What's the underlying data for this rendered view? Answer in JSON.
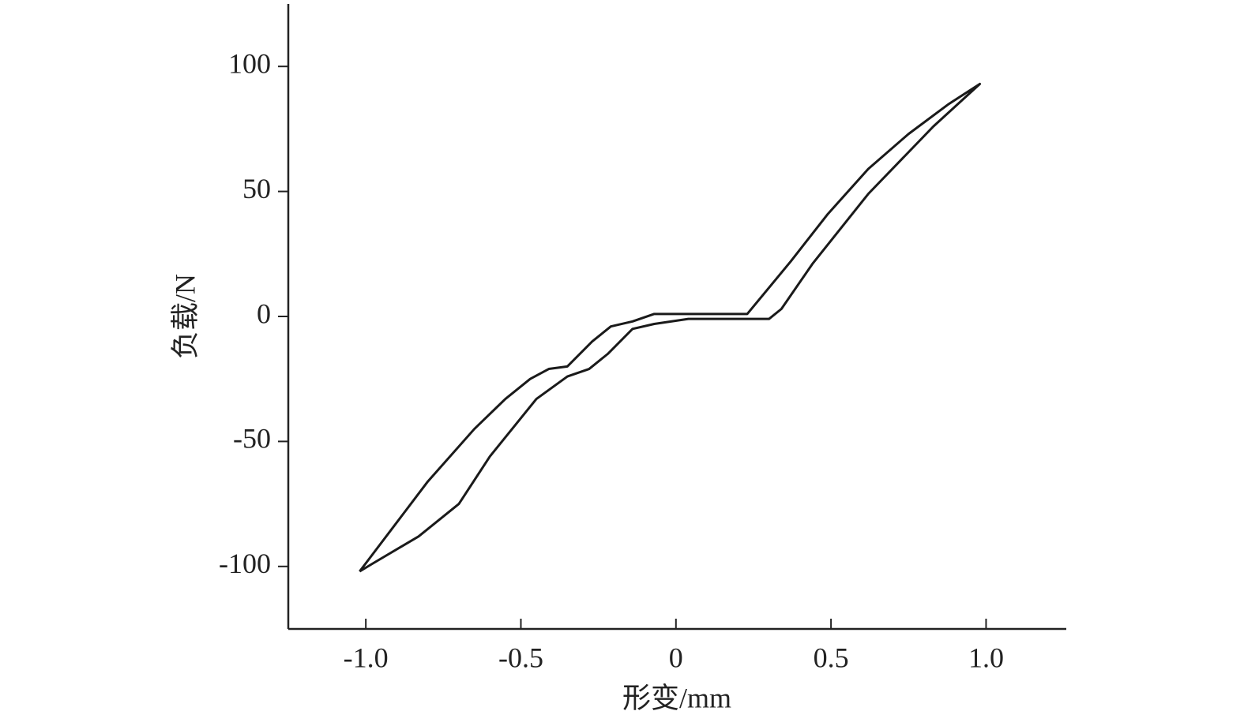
{
  "chart_data": {
    "type": "line",
    "x_label": "形变/mm",
    "y_label": "负载/N",
    "x": [
      -1.02,
      -0.8,
      -0.65,
      -0.55,
      -0.47,
      -0.41,
      -0.35,
      -0.27,
      -0.21,
      -0.14,
      -0.07,
      0,
      0.23,
      0.37,
      0.49,
      0.62,
      0.75,
      0.88,
      0.98,
      0.83,
      0.62,
      0.44,
      0.34,
      0.3,
      0.04,
      -0.07,
      -0.14,
      -0.22,
      -0.28,
      -0.35,
      -0.45,
      -0.6,
      -0.7,
      -0.83,
      -0.98,
      -1.02
    ],
    "values": [
      -102,
      -66,
      -45,
      -33,
      -25,
      -21,
      -20,
      -10,
      -4,
      -2,
      1,
      1,
      1,
      22,
      41,
      59,
      73,
      85,
      93,
      76,
      49,
      21,
      3,
      -1,
      -1,
      -3,
      -5,
      -15,
      -21,
      -24,
      -33,
      -56,
      -75,
      -88,
      -99,
      -102
    ],
    "color": "#1a1a1a",
    "xlim": [
      -1.25,
      1.25
    ],
    "xticks": [
      {
        "value": -1,
        "label": "-1.0"
      },
      -0.5,
      0,
      0.5,
      {
        "value": 1,
        "label": "1.0"
      }
    ],
    "ylim": [
      -125,
      125
    ],
    "yticks": [
      -100,
      -50,
      0,
      50,
      100
    ],
    "grid": false
  }
}
